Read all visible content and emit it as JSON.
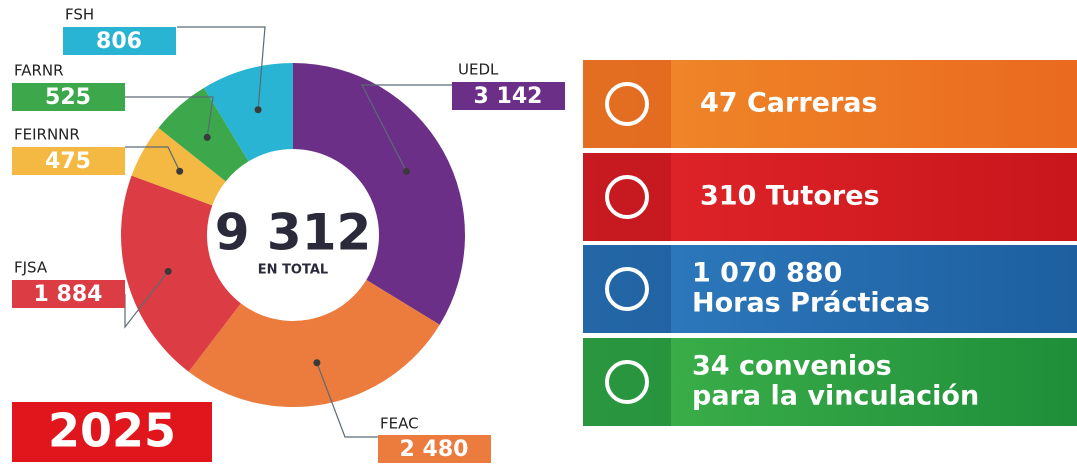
{
  "chart_data": {
    "type": "donut",
    "categories": [
      "UEDL",
      "FEAC",
      "FJSA",
      "FEIRNNR",
      "FARNR",
      "FSH"
    ],
    "values": [
      3142,
      2480,
      1884,
      475,
      525,
      806
    ],
    "value_labels": [
      "3 142",
      "2 480",
      "1 884",
      "475",
      "525",
      "806"
    ],
    "colors": [
      "#6b2f87",
      "#ec7b3e",
      "#dc3d45",
      "#f4b942",
      "#3ca84b",
      "#2ab4d4"
    ],
    "total": 9312,
    "total_label": "9 312",
    "total_caption": "EN TOTAL"
  },
  "year": "2025",
  "stats": [
    {
      "lines": [
        "47 Carreras"
      ]
    },
    {
      "lines": [
        "310 Tutores"
      ]
    },
    {
      "lines": [
        "1 070 880",
        "Horas Prácticas"
      ]
    },
    {
      "lines": [
        "34 convenios",
        "para la vinculación"
      ]
    }
  ]
}
